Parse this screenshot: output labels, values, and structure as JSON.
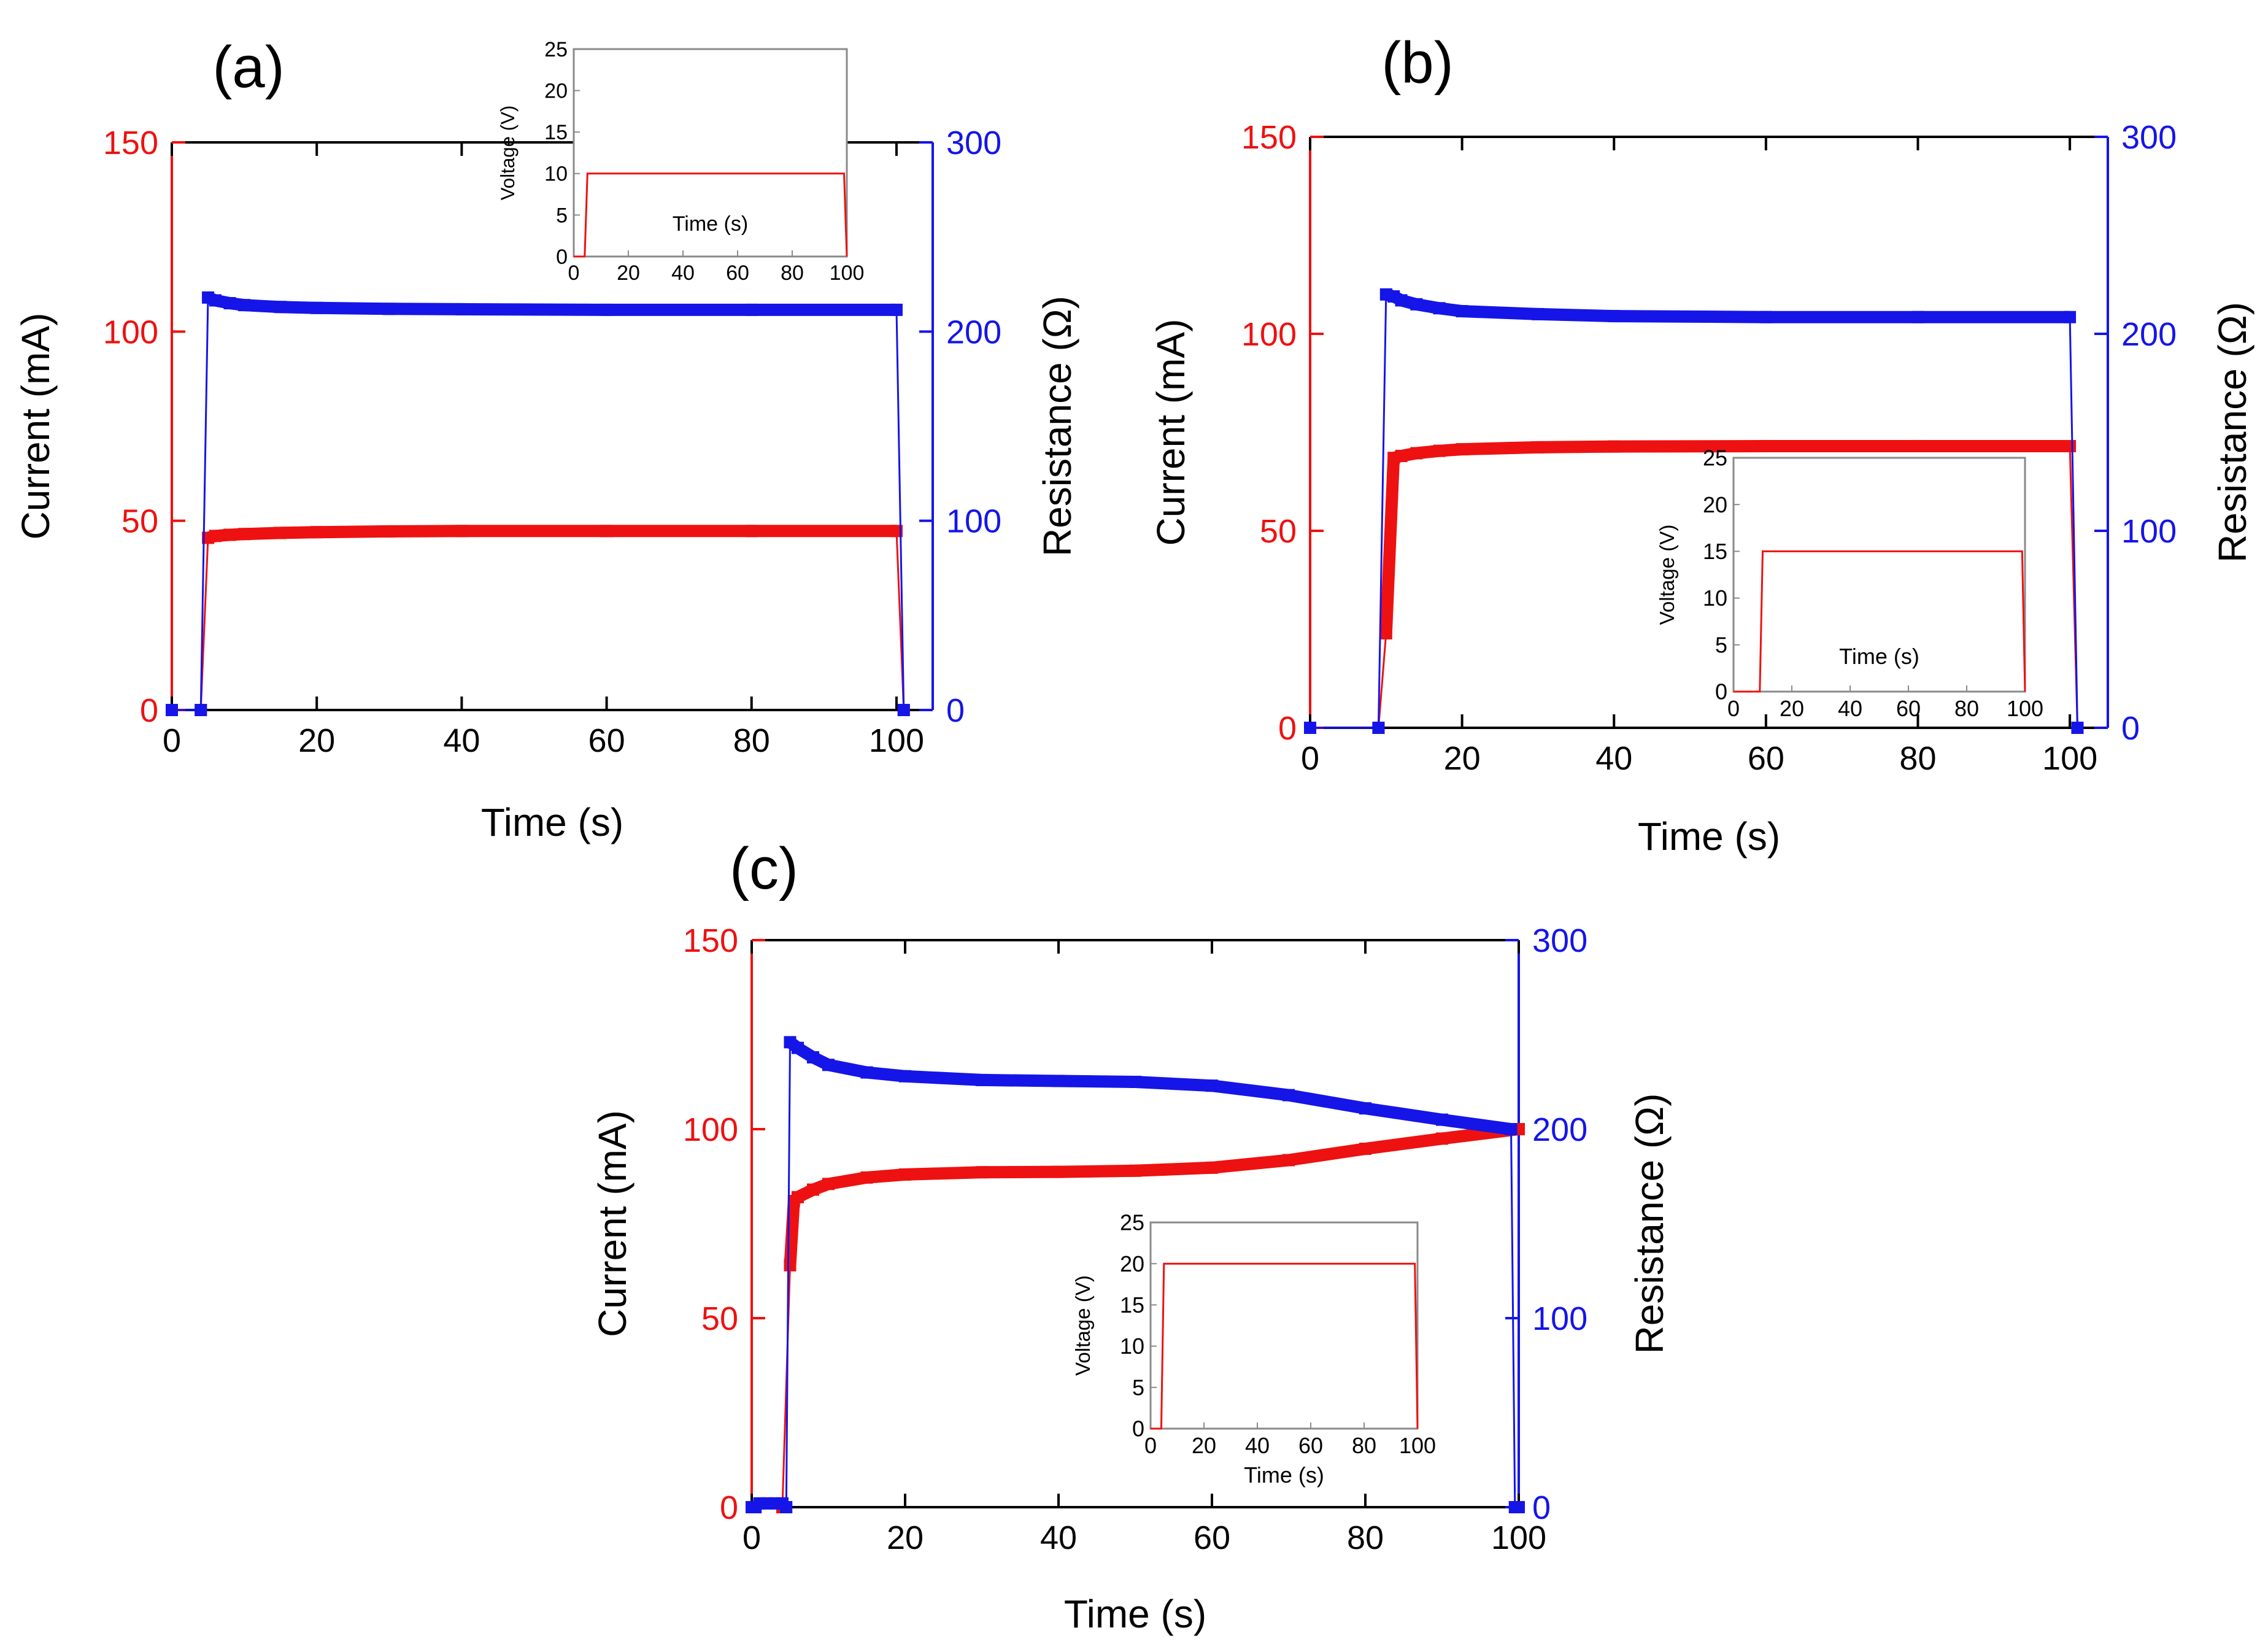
{
  "figure": {
    "colors": {
      "current": "#ee1111",
      "resistance": "#1515e8",
      "axis": "#000000",
      "inset_frame": "#8a8a8a"
    }
  },
  "chart_data": [
    {
      "type": "line",
      "panel_label": "(a)",
      "xlabel": "Time (s)",
      "ylabel_left": "Current (mA)",
      "ylabel_right": "Resistance (Ω)",
      "xlim": [
        0,
        105
      ],
      "ylim_left": [
        0,
        150
      ],
      "ylim_right": [
        0,
        300
      ],
      "x_ticks": [
        "0",
        "20",
        "40",
        "60",
        "80",
        "100"
      ],
      "y_ticks_left": [
        "0",
        "50",
        "100",
        "150"
      ],
      "y_ticks_right": [
        "0",
        "100",
        "200",
        "300"
      ],
      "series": [
        {
          "name": "Current (mA)",
          "axis": "left",
          "color": "#ee1111",
          "x": [
            0,
            4,
            5,
            6,
            8,
            10,
            15,
            20,
            30,
            40,
            60,
            80,
            100,
            101
          ],
          "y": [
            0,
            0,
            45.5,
            46,
            46.3,
            46.5,
            46.8,
            47,
            47.2,
            47.3,
            47.3,
            47.3,
            47.3,
            0
          ]
        },
        {
          "name": "Resistance (Ω)",
          "axis": "right",
          "color": "#1515e8",
          "x": [
            0,
            4,
            5,
            6,
            8,
            10,
            15,
            20,
            30,
            40,
            60,
            80,
            100,
            101
          ],
          "y": [
            0,
            0,
            218,
            216.5,
            215,
            214,
            213,
            212.5,
            212,
            211.8,
            211.5,
            211.5,
            211.5,
            0
          ]
        }
      ],
      "inset": {
        "xlabel": "Time (s)",
        "ylabel": "Voltage (V)",
        "xlim": [
          0,
          100
        ],
        "ylim": [
          0,
          25
        ],
        "x_ticks": [
          "0",
          "20",
          "40",
          "60",
          "80",
          "100"
        ],
        "y_ticks": [
          "0",
          "5",
          "10",
          "15",
          "20",
          "25"
        ],
        "x": [
          0,
          4,
          5,
          99,
          100
        ],
        "y": [
          0,
          0,
          10,
          10,
          0
        ]
      }
    },
    {
      "type": "line",
      "panel_label": "(b)",
      "xlabel": "Time (s)",
      "ylabel_left": "Current (mA)",
      "ylabel_right": "Resistance (Ω)",
      "xlim": [
        0,
        105
      ],
      "ylim_left": [
        0,
        150
      ],
      "ylim_right": [
        0,
        300
      ],
      "x_ticks": [
        "0",
        "20",
        "40",
        "60",
        "80",
        "100"
      ],
      "y_ticks_left": [
        "0",
        "50",
        "100",
        "150"
      ],
      "y_ticks_right": [
        "0",
        "100",
        "200",
        "300"
      ],
      "series": [
        {
          "name": "Current (mA)",
          "axis": "left",
          "color": "#ee1111",
          "x": [
            0,
            9,
            10,
            11,
            12,
            14,
            17,
            20,
            30,
            40,
            60,
            80,
            100,
            101
          ],
          "y": [
            0,
            0,
            24,
            68.5,
            69,
            69.7,
            70.3,
            70.7,
            71.2,
            71.4,
            71.5,
            71.5,
            71.5,
            0
          ]
        },
        {
          "name": "Resistance (Ω)",
          "axis": "right",
          "color": "#1515e8",
          "x": [
            0,
            9,
            10,
            11,
            12,
            14,
            17,
            20,
            30,
            40,
            60,
            80,
            100,
            101
          ],
          "y": [
            0,
            0,
            220,
            219,
            217,
            215,
            213,
            211.5,
            210,
            209,
            208.5,
            208.5,
            208.5,
            0
          ]
        }
      ],
      "inset": {
        "xlabel": "Time (s)",
        "ylabel": "Voltage (V)",
        "xlim": [
          0,
          100
        ],
        "ylim": [
          0,
          25
        ],
        "x_ticks": [
          "0",
          "20",
          "40",
          "60",
          "80",
          "100"
        ],
        "y_ticks": [
          "0",
          "5",
          "10",
          "15",
          "20",
          "25"
        ],
        "x": [
          0,
          9,
          10,
          99,
          100
        ],
        "y": [
          0,
          0,
          15,
          15,
          0
        ]
      }
    },
    {
      "type": "line",
      "panel_label": "(c)",
      "xlabel": "Time (s)",
      "ylabel_left": "Current (mA)",
      "ylabel_right": "Resistance (Ω)",
      "xlim": [
        0,
        100
      ],
      "ylim_left": [
        0,
        150
      ],
      "ylim_right": [
        0,
        300
      ],
      "x_ticks": [
        "0",
        "20",
        "40",
        "60",
        "80",
        "100"
      ],
      "y_ticks_left": [
        "0",
        "50",
        "100",
        "150"
      ],
      "y_ticks_right": [
        "0",
        "100",
        "200",
        "300"
      ],
      "series": [
        {
          "name": "Current (mA)",
          "axis": "left",
          "color": "#ee1111",
          "x": [
            0,
            4,
            5,
            5.5,
            6,
            8,
            10,
            15,
            20,
            30,
            40,
            50,
            60,
            70,
            80,
            90,
            100
          ],
          "y": [
            0,
            0,
            64,
            81,
            82,
            84,
            85.5,
            87.2,
            88,
            88.6,
            88.7,
            89,
            89.8,
            91.8,
            94.8,
            97.5,
            100
          ]
        },
        {
          "name": "Resistance (Ω)",
          "axis": "right",
          "color": "#1515e8",
          "x": [
            0,
            0.5,
            1,
            2,
            3,
            4,
            4.5,
            5,
            6,
            8,
            10,
            15,
            20,
            30,
            40,
            50,
            60,
            70,
            80,
            90,
            99,
            99.5,
            100
          ],
          "y": [
            0,
            0,
            2,
            2,
            2,
            2,
            0,
            246,
            243,
            238,
            234,
            230,
            228,
            226,
            225.5,
            225,
            223,
            218,
            211,
            205,
            200,
            0,
            0
          ]
        }
      ],
      "inset": {
        "xlabel": "Time (s)",
        "ylabel": "Voltage (V)",
        "xlim": [
          0,
          100
        ],
        "ylim": [
          0,
          25
        ],
        "x_ticks": [
          "0",
          "20",
          "40",
          "60",
          "80",
          "100"
        ],
        "y_ticks": [
          "0",
          "5",
          "10",
          "15",
          "20",
          "25"
        ],
        "x": [
          0,
          4,
          5,
          99,
          100
        ],
        "y": [
          0,
          0,
          20,
          20,
          0
        ]
      }
    }
  ]
}
